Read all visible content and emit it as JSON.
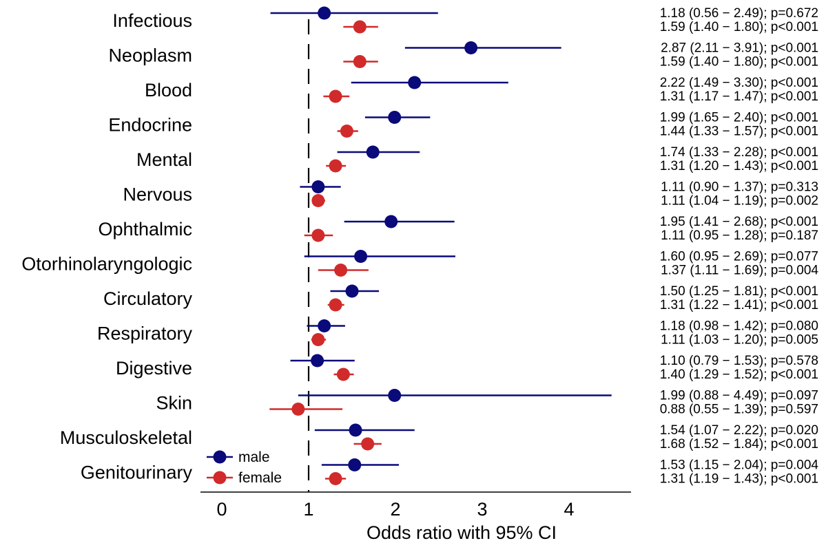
{
  "chart_data": {
    "type": "forest",
    "xlabel": "Odds ratio with 95% CI",
    "xlim": [
      0,
      4.7
    ],
    "xticks": [
      0,
      1,
      2,
      3,
      4
    ],
    "reference_line": 1,
    "legend": {
      "placement": "bottom-left",
      "entries": [
        "male",
        "female"
      ]
    },
    "colors": {
      "male": "#0a0a7a",
      "female": "#d12a2a"
    },
    "categories": [
      "Infectious",
      "Neoplasm",
      "Blood",
      "Endocrine",
      "Mental",
      "Nervous",
      "Ophthalmic",
      "Otorhinolaryngologic",
      "Circulatory",
      "Respiratory",
      "Digestive",
      "Skin",
      "Musculoskeletal",
      "Genitourinary"
    ],
    "series": [
      {
        "name": "male",
        "values": [
          {
            "or": 1.18,
            "lo": 0.56,
            "hi": 2.49,
            "label": "1.18 (0.56 − 2.49); p=0.672"
          },
          {
            "or": 2.87,
            "lo": 2.11,
            "hi": 3.91,
            "label": "2.87 (2.11 − 3.91); p<0.001"
          },
          {
            "or": 2.22,
            "lo": 1.49,
            "hi": 3.3,
            "label": "2.22 (1.49 − 3.30); p<0.001"
          },
          {
            "or": 1.99,
            "lo": 1.65,
            "hi": 2.4,
            "label": "1.99 (1.65 − 2.40); p<0.001"
          },
          {
            "or": 1.74,
            "lo": 1.33,
            "hi": 2.28,
            "label": "1.74 (1.33 − 2.28); p<0.001"
          },
          {
            "or": 1.11,
            "lo": 0.9,
            "hi": 1.37,
            "label": "1.11 (0.90 − 1.37); p=0.313"
          },
          {
            "or": 1.95,
            "lo": 1.41,
            "hi": 2.68,
            "label": "1.95 (1.41 − 2.68); p<0.001"
          },
          {
            "or": 1.6,
            "lo": 0.95,
            "hi": 2.69,
            "label": "1.60 (0.95 − 2.69); p=0.077"
          },
          {
            "or": 1.5,
            "lo": 1.25,
            "hi": 1.81,
            "label": "1.50 (1.25 − 1.81); p<0.001"
          },
          {
            "or": 1.18,
            "lo": 0.98,
            "hi": 1.42,
            "label": "1.18 (0.98 − 1.42); p=0.080"
          },
          {
            "or": 1.1,
            "lo": 0.79,
            "hi": 1.53,
            "label": "1.10 (0.79 − 1.53); p=0.578"
          },
          {
            "or": 1.99,
            "lo": 0.88,
            "hi": 4.49,
            "label": "1.99 (0.88 − 4.49); p=0.097"
          },
          {
            "or": 1.54,
            "lo": 1.07,
            "hi": 2.22,
            "label": "1.54 (1.07 − 2.22); p=0.020"
          },
          {
            "or": 1.53,
            "lo": 1.15,
            "hi": 2.04,
            "label": "1.53 (1.15 − 2.04); p=0.004"
          }
        ]
      },
      {
        "name": "female",
        "values": [
          {
            "or": 1.59,
            "lo": 1.4,
            "hi": 1.8,
            "label": "1.59 (1.40 − 1.80); p<0.001"
          },
          {
            "or": 1.59,
            "lo": 1.4,
            "hi": 1.8,
            "label": "1.59 (1.40 − 1.80); p<0.001"
          },
          {
            "or": 1.31,
            "lo": 1.17,
            "hi": 1.47,
            "label": "1.31 (1.17 − 1.47); p<0.001"
          },
          {
            "or": 1.44,
            "lo": 1.33,
            "hi": 1.57,
            "label": "1.44 (1.33 − 1.57); p<0.001"
          },
          {
            "or": 1.31,
            "lo": 1.2,
            "hi": 1.43,
            "label": "1.31 (1.20 − 1.43); p<0.001"
          },
          {
            "or": 1.11,
            "lo": 1.04,
            "hi": 1.19,
            "label": "1.11 (1.04 − 1.19); p=0.002"
          },
          {
            "or": 1.11,
            "lo": 0.95,
            "hi": 1.28,
            "label": "1.11 (0.95 − 1.28); p=0.187"
          },
          {
            "or": 1.37,
            "lo": 1.11,
            "hi": 1.69,
            "label": "1.37 (1.11 − 1.69); p=0.004"
          },
          {
            "or": 1.31,
            "lo": 1.22,
            "hi": 1.41,
            "label": "1.31 (1.22 − 1.41); p<0.001"
          },
          {
            "or": 1.11,
            "lo": 1.03,
            "hi": 1.2,
            "label": "1.11 (1.03 − 1.20); p=0.005"
          },
          {
            "or": 1.4,
            "lo": 1.29,
            "hi": 1.52,
            "label": "1.40 (1.29 − 1.52); p<0.001"
          },
          {
            "or": 0.88,
            "lo": 0.55,
            "hi": 1.39,
            "label": "0.88 (0.55 − 1.39); p=0.597"
          },
          {
            "or": 1.68,
            "lo": 1.52,
            "hi": 1.84,
            "label": "1.68 (1.52 − 1.84); p<0.001"
          },
          {
            "or": 1.31,
            "lo": 1.19,
            "hi": 1.43,
            "label": "1.31 (1.19 − 1.43); p<0.001"
          }
        ]
      }
    ]
  }
}
